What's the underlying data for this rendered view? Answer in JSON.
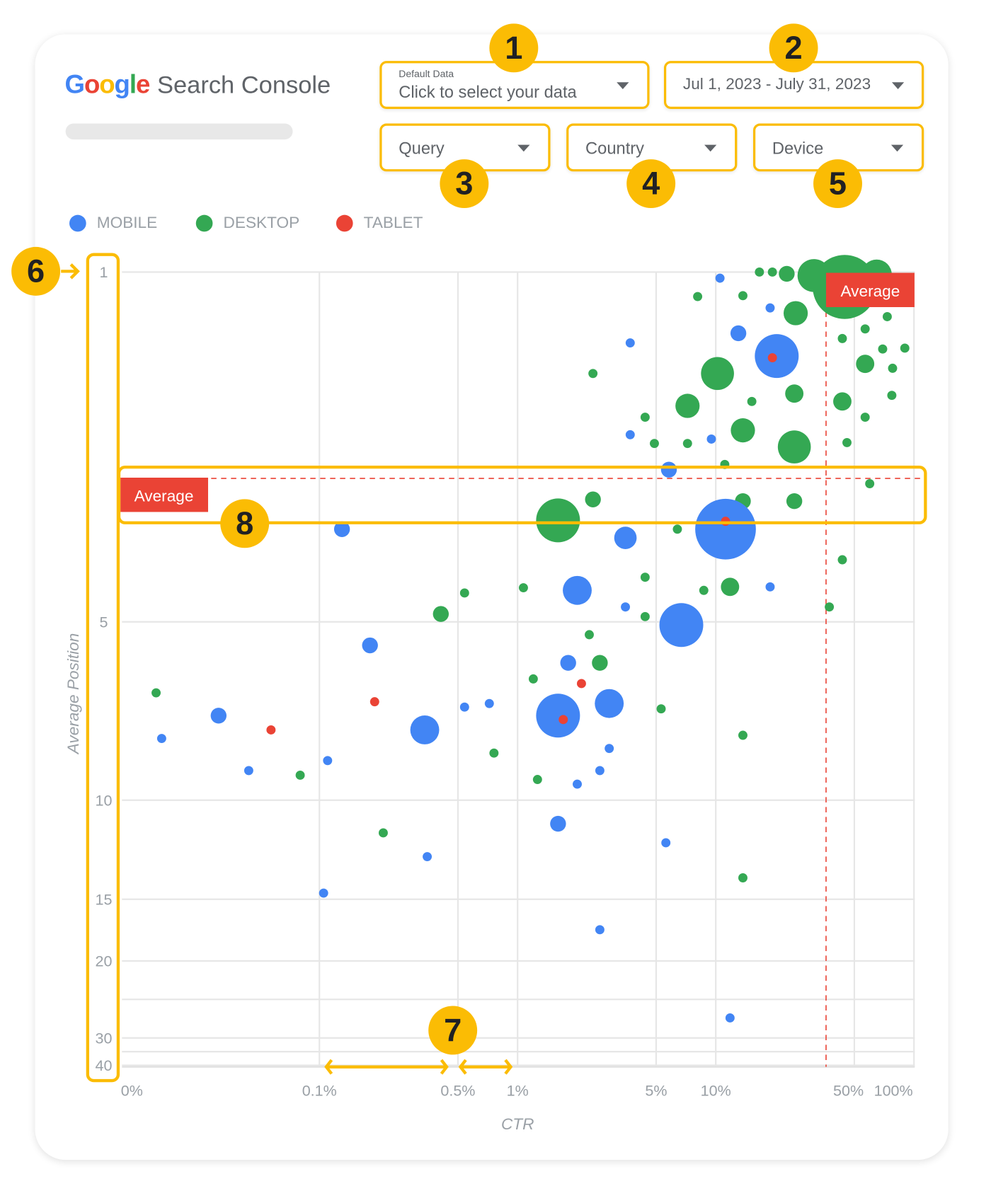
{
  "header": {
    "logo_text": "Google",
    "product_name": "Search Console",
    "data_selector": {
      "label": "Default Data",
      "value": "Click to select your data"
    },
    "date_range": "Jul 1, 2023 - July 31, 2023",
    "filters": [
      "Query",
      "Country",
      "Device"
    ]
  },
  "annotations": [
    "1",
    "2",
    "3",
    "4",
    "5",
    "6",
    "7",
    "8"
  ],
  "colors": {
    "mobile": "#4285F4",
    "desktop": "#34A853",
    "tablet": "#EA4335",
    "annotation": "#FBBC04",
    "average": "#EA4335"
  },
  "chart_data": {
    "type": "scatter",
    "xlabel": "CTR",
    "ylabel": "Average Position",
    "x_scale": "log",
    "y_reversed": true,
    "x_ticks": [
      {
        "value": 0.01,
        "label": "0%"
      },
      {
        "value": 0.1,
        "label": "0.1%"
      },
      {
        "value": 0.5,
        "label": "0.5%"
      },
      {
        "value": 1,
        "label": "1%"
      },
      {
        "value": 5,
        "label": "5%"
      },
      {
        "value": 10,
        "label": "10%"
      },
      {
        "value": 50,
        "label": "50%"
      },
      {
        "value": 100,
        "label": "100%"
      }
    ],
    "y_ticks": [
      {
        "value": 1,
        "label": "1"
      },
      {
        "value": 5,
        "label": "5"
      },
      {
        "value": 10,
        "label": "10"
      },
      {
        "value": 15,
        "label": "15"
      },
      {
        "value": 20,
        "label": "20"
      },
      {
        "value": 30,
        "label": "30"
      },
      {
        "value": 40,
        "label": "40"
      }
    ],
    "grid": true,
    "legend": {
      "placement": "top-left",
      "entries": [
        {
          "key": "mobile",
          "label": "MOBILE"
        },
        {
          "key": "desktop",
          "label": "DESKTOP"
        },
        {
          "key": "tablet",
          "label": "TABLET"
        }
      ]
    },
    "average": {
      "label": "Average",
      "ctr": 36,
      "position": 3.36
    },
    "series": [
      {
        "key": "desktop",
        "points": [
          [
            16.6,
            1.0,
            1
          ],
          [
            19.3,
            1.0,
            1
          ],
          [
            22.8,
            1.02,
            3
          ],
          [
            31.3,
            1.04,
            13
          ],
          [
            64.8,
            1.03,
            11
          ],
          [
            44.7,
            1.17,
            49
          ],
          [
            8.1,
            1.28,
            1
          ],
          [
            13.7,
            1.27,
            1
          ],
          [
            25.3,
            1.47,
            7
          ],
          [
            56.7,
            1.65,
            1
          ],
          [
            73.3,
            1.51,
            1
          ],
          [
            43.5,
            1.76,
            1
          ],
          [
            69.5,
            1.88,
            1
          ],
          [
            89.9,
            1.87,
            1
          ],
          [
            56.7,
            2.05,
            4
          ],
          [
            78,
            2.1,
            1
          ],
          [
            10.2,
            2.16,
            13
          ],
          [
            2.4,
            2.16,
            1
          ],
          [
            24.9,
            2.39,
            4
          ],
          [
            15.2,
            2.48,
            1
          ],
          [
            7.2,
            2.53,
            7
          ],
          [
            43.5,
            2.48,
            4
          ],
          [
            77.3,
            2.41,
            1
          ],
          [
            4.4,
            2.66,
            1
          ],
          [
            56.7,
            2.66,
            1
          ],
          [
            13.7,
            2.81,
            7
          ],
          [
            4.9,
            2.96,
            1
          ],
          [
            7.2,
            2.96,
            1
          ],
          [
            45.9,
            2.95,
            1
          ],
          [
            24.9,
            3.0,
            13
          ],
          [
            11.1,
            3.2,
            1
          ],
          [
            59.8,
            3.42,
            1
          ],
          [
            2.4,
            3.6,
            3
          ],
          [
            13.7,
            3.62,
            3
          ],
          [
            24.9,
            3.62,
            3
          ],
          [
            1.6,
            3.84,
            23
          ],
          [
            6.4,
            3.94,
            1
          ],
          [
            9.2,
            3.85,
            1
          ],
          [
            43.5,
            4.29,
            1
          ],
          [
            4.4,
            4.49,
            1
          ],
          [
            0.54,
            4.67,
            1
          ],
          [
            1.07,
            4.61,
            1
          ],
          [
            8.7,
            4.64,
            1
          ],
          [
            11.8,
            4.6,
            4
          ],
          [
            0.41,
            4.91,
            3
          ],
          [
            4.4,
            4.94,
            1
          ],
          [
            37.4,
            4.83,
            1
          ],
          [
            2.3,
            5.36,
            1
          ],
          [
            2.6,
            6.15,
            3
          ],
          [
            1.2,
            6.6,
            1
          ],
          [
            5.3,
            7.44,
            1
          ],
          [
            0.015,
            6.99,
            1
          ],
          [
            13.7,
            8.18,
            1
          ],
          [
            0.76,
            8.68,
            1
          ],
          [
            0.08,
            9.3,
            1
          ],
          [
            1.26,
            9.42,
            1
          ],
          [
            0.21,
            11.65,
            1
          ],
          [
            13.7,
            13.92,
            1
          ]
        ]
      },
      {
        "key": "mobile",
        "points": [
          [
            10.5,
            1.07,
            1
          ],
          [
            18.8,
            1.41,
            1
          ],
          [
            13,
            1.7,
            3
          ],
          [
            3.7,
            1.81,
            1
          ],
          [
            20.3,
            1.96,
            23
          ],
          [
            3.7,
            2.86,
            1
          ],
          [
            9.5,
            2.91,
            1
          ],
          [
            5.8,
            3.26,
            3
          ],
          [
            0.13,
            3.94,
            3
          ],
          [
            3.5,
            4.04,
            6
          ],
          [
            11.2,
            3.94,
            44
          ],
          [
            2.0,
            4.64,
            10
          ],
          [
            18.8,
            4.6,
            1
          ],
          [
            3.5,
            4.83,
            1
          ],
          [
            6.7,
            5.09,
            23
          ],
          [
            0.18,
            5.66,
            3
          ],
          [
            1.8,
            6.15,
            3
          ],
          [
            2.9,
            7.29,
            10
          ],
          [
            0.54,
            7.39,
            1
          ],
          [
            0.72,
            7.29,
            1
          ],
          [
            1.6,
            7.63,
            23
          ],
          [
            0.031,
            7.63,
            3
          ],
          [
            0.34,
            8.03,
            10
          ],
          [
            0.016,
            8.27,
            1
          ],
          [
            2.9,
            8.55,
            1
          ],
          [
            0.044,
            9.17,
            1
          ],
          [
            0.11,
            8.89,
            1
          ],
          [
            2.6,
            9.17,
            1
          ],
          [
            2.0,
            9.55,
            1
          ],
          [
            1.6,
            11.19,
            3
          ],
          [
            5.6,
            12.15,
            1
          ],
          [
            0.35,
            12.85,
            1
          ],
          [
            0.105,
            14.69,
            1
          ],
          [
            2.6,
            17.47,
            1
          ],
          [
            11.8,
            27.4,
            1
          ]
        ]
      },
      {
        "key": "tablet",
        "points": [
          [
            19.3,
            1.98,
            1
          ],
          [
            11.2,
            3.85,
            1
          ],
          [
            2.1,
            6.73,
            1
          ],
          [
            1.7,
            7.74,
            1
          ],
          [
            0.19,
            7.24,
            1
          ],
          [
            0.057,
            8.03,
            1
          ]
        ]
      }
    ],
    "point_format": [
      "ctr_percent",
      "average_position",
      "relative_size"
    ]
  }
}
